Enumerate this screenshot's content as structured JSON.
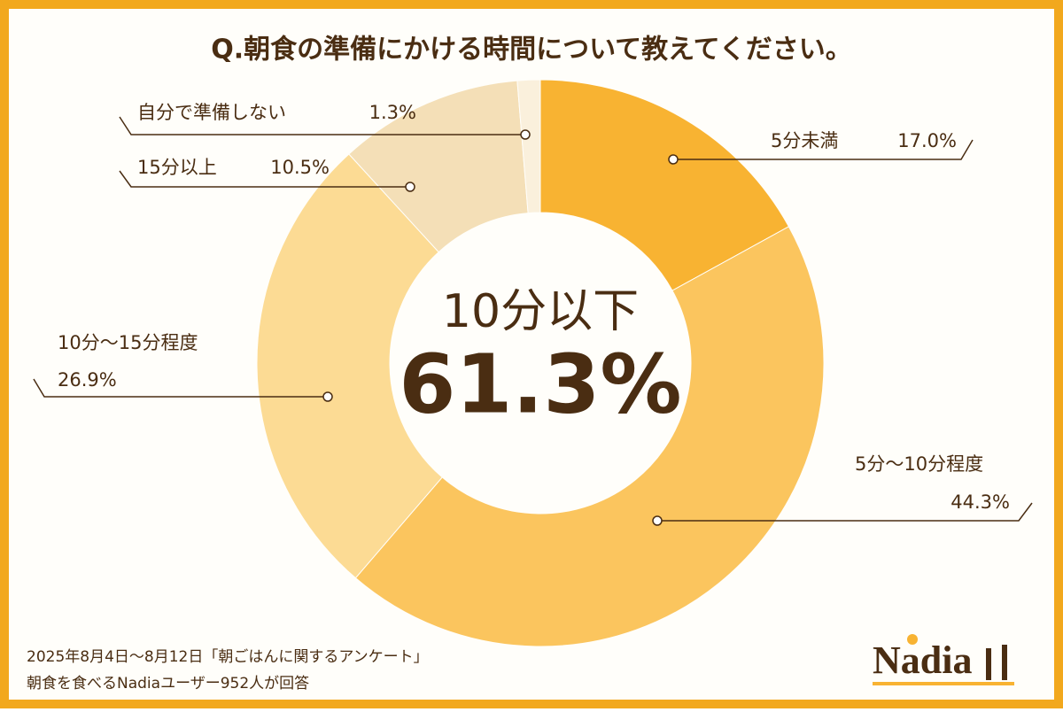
{
  "chart_data": {
    "type": "pie",
    "title": "Q.朝食の準備にかける時間について教えてください。",
    "categories": [
      "5分未満",
      "5分〜10分程度",
      "10分〜15分程度",
      "15分以上",
      "自分で準備しない"
    ],
    "values": [
      17.0,
      44.3,
      26.9,
      10.5,
      1.3
    ],
    "value_labels": [
      "17.0%",
      "44.3%",
      "26.9%",
      "10.5%",
      "1.3%"
    ],
    "colors": [
      "#f8b332",
      "#fbc55e",
      "#fcdb94",
      "#f4dfb7",
      "#faf0dc"
    ],
    "donut": true,
    "annotations": [
      "10分以下",
      "61.3%"
    ],
    "source": [
      "2025年8月4日〜8月12日「朝ごはんに関するアンケート」",
      "朝食を食べるNadiaユーザー952人が回答"
    ],
    "logo": "Nadia"
  }
}
